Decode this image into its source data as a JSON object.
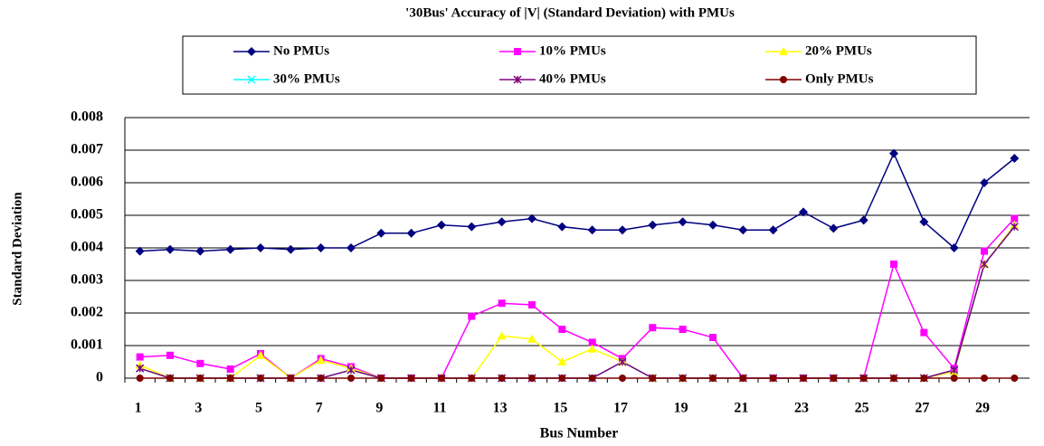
{
  "chart_data": {
    "type": "line",
    "title": "'30Bus' Accuracy of |V| (Standard Deviation) with PMUs",
    "x_label": "Bus Number",
    "y_label": "Standard Deviation",
    "categories": [
      "1",
      null,
      "3",
      null,
      "5",
      null,
      "7",
      null,
      "9",
      null,
      "11",
      null,
      "13",
      null,
      "15",
      null,
      "17",
      null,
      "19",
      null,
      "21",
      null,
      "23",
      null,
      "25",
      null,
      "27",
      null,
      "29",
      null
    ],
    "ylim": [
      0,
      0.008
    ],
    "yticks": [
      0,
      0.001,
      0.002,
      0.003,
      0.004,
      0.005,
      0.006,
      0.007,
      0.008
    ],
    "grid": true,
    "legend": "top",
    "series": [
      {
        "name": "No PMUs",
        "color": "#000080",
        "marker": "diamond",
        "values": [
          0.0039,
          0.00395,
          0.0039,
          0.00395,
          0.004,
          0.00395,
          0.004,
          0.004,
          0.00445,
          0.00445,
          0.0047,
          0.00465,
          0.0048,
          0.0049,
          0.00465,
          0.00455,
          0.00455,
          0.0047,
          0.0048,
          0.0047,
          0.00455,
          0.00455,
          0.0051,
          0.0046,
          0.00485,
          0.0069,
          0.0048,
          0.004,
          0.006,
          0.00675
        ]
      },
      {
        "name": "10% PMUs",
        "color": "#ff00ff",
        "marker": "square",
        "values": [
          0.00065,
          0.0007,
          0.00045,
          0.00028,
          0.00075,
          0,
          0.0006,
          0.00035,
          0,
          0,
          0,
          0.0019,
          0.0023,
          0.00225,
          0.0015,
          0.0011,
          0.0006,
          0.00155,
          0.0015,
          0.00125,
          0,
          0,
          0,
          0,
          0,
          0.0035,
          0.0014,
          0.0003,
          0.0039,
          0.0049
        ]
      },
      {
        "name": "20% PMUs",
        "color": "#ffff00",
        "marker": "triangle",
        "values": [
          0.0004,
          0,
          0,
          0,
          0.0007,
          0,
          0.00055,
          0.0003,
          0,
          0,
          0,
          0,
          0.0013,
          0.0012,
          0.0005,
          0.0009,
          0.0005,
          0,
          0,
          0,
          0,
          0,
          0,
          0,
          0,
          0,
          0,
          0.0002,
          0.0035,
          0.0047
        ]
      },
      {
        "name": "30% PMUs",
        "color": "#00ffff",
        "marker": "x",
        "values": [
          0.0003,
          0,
          0,
          0,
          0,
          0,
          0,
          0.00025,
          0,
          0,
          0,
          0,
          0,
          0,
          0,
          0,
          0.0005,
          0,
          0,
          0,
          0,
          0,
          0,
          0,
          0,
          0,
          0,
          0.00025,
          0.0035,
          0.00465
        ]
      },
      {
        "name": "40% PMUs",
        "color": "#800080",
        "marker": "star",
        "values": [
          0.0003,
          0,
          0,
          0,
          0,
          0,
          0,
          0.00025,
          0,
          0,
          0,
          0,
          0,
          0,
          0,
          0,
          0.0005,
          0,
          0,
          0,
          0,
          0,
          0,
          0,
          0,
          0,
          0,
          0.00025,
          0.0035,
          0.00465
        ]
      },
      {
        "name": "Only PMUs",
        "color": "#800000",
        "marker": "circle",
        "values": [
          0,
          0,
          0,
          0,
          0,
          0,
          0,
          0,
          0,
          0,
          0,
          0,
          0,
          0,
          0,
          0,
          0,
          0,
          0,
          0,
          0,
          0,
          0,
          0,
          0,
          0,
          0,
          0,
          0,
          0
        ]
      }
    ]
  }
}
